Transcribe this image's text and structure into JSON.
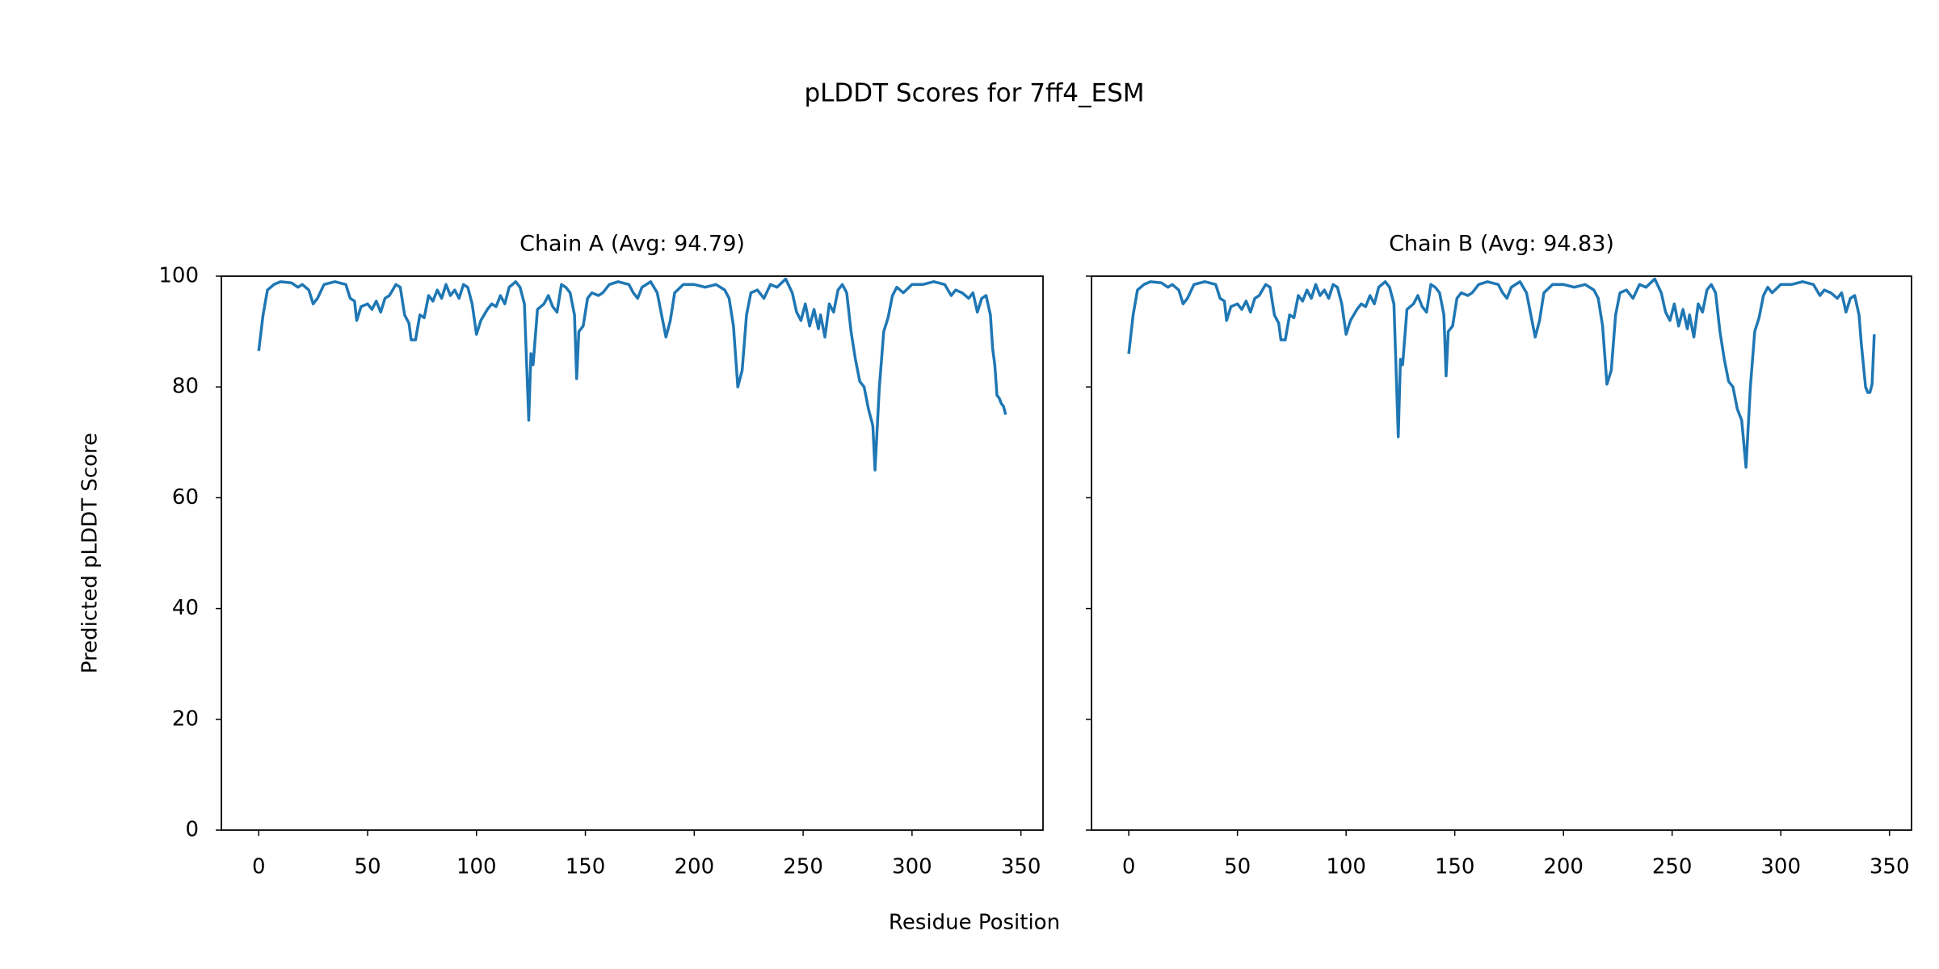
{
  "title": "pLDDT Scores for 7ff4_ESM",
  "xlabel": "Residue Position",
  "ylabel": "Predicted pLDDT Score",
  "chart_data": [
    {
      "type": "line",
      "title": "Chain A (Avg: 94.79)",
      "color": "#1f77b4",
      "xlim": [
        -17.15,
        360.15
      ],
      "ylim": [
        0,
        100
      ],
      "xticks": [
        0,
        50,
        100,
        150,
        200,
        250,
        300,
        350
      ],
      "yticks": [
        0,
        20,
        40,
        60,
        80,
        100
      ],
      "x": [
        0,
        2,
        4,
        7,
        10,
        15,
        18,
        20,
        23,
        25,
        27,
        30,
        35,
        40,
        42,
        44,
        45,
        47,
        50,
        52,
        54,
        56,
        58,
        60,
        63,
        65,
        67,
        69,
        70,
        72,
        74,
        76,
        78,
        80,
        82,
        84,
        86,
        88,
        90,
        92,
        94,
        96,
        98,
        100,
        102,
        105,
        107,
        109,
        111,
        113,
        115,
        118,
        120,
        122,
        124,
        125,
        126,
        128,
        131,
        133,
        135,
        137,
        139,
        141,
        143,
        145,
        146,
        147,
        149,
        151,
        153,
        156,
        158,
        161,
        165,
        170,
        172,
        174,
        176,
        180,
        183,
        185,
        187,
        189,
        191,
        195,
        200,
        205,
        210,
        214,
        216,
        218,
        220,
        222,
        224,
        226,
        229,
        232,
        235,
        238,
        242,
        245,
        247,
        249,
        251,
        253,
        255,
        257,
        258,
        260,
        262,
        264,
        266,
        268,
        270,
        272,
        274,
        276,
        278,
        280,
        282,
        283,
        285,
        287,
        289,
        291,
        293,
        296,
        300,
        305,
        310,
        315,
        318,
        320,
        323,
        326,
        328,
        330,
        332,
        334,
        336,
        337,
        338,
        339,
        340,
        341,
        342,
        343
      ],
      "values": [
        86.5,
        93,
        97.5,
        98.5,
        99,
        98.8,
        98,
        98.5,
        97.5,
        95,
        96,
        98.5,
        99,
        98.5,
        96,
        95.5,
        92,
        94.5,
        95,
        94,
        95.5,
        93.5,
        96,
        96.5,
        98.5,
        98,
        93,
        91.5,
        88.5,
        88.5,
        93,
        92.5,
        96.5,
        95.5,
        97.5,
        96,
        98.5,
        96.5,
        97.5,
        96,
        98.5,
        98,
        95,
        89.5,
        92,
        94,
        95,
        94.5,
        96.5,
        95,
        98,
        99,
        98,
        95,
        74,
        86,
        84,
        94,
        95,
        96.5,
        94.5,
        93.5,
        98.5,
        98,
        97,
        93,
        81.5,
        90,
        91,
        96,
        97,
        96.5,
        97,
        98.5,
        99,
        98.5,
        97,
        96,
        98,
        99,
        97,
        93,
        89,
        92,
        97,
        98.5,
        98.5,
        98,
        98.5,
        97.5,
        96,
        91,
        80,
        83,
        93,
        97,
        97.5,
        96,
        98.5,
        98,
        99.5,
        97,
        93.5,
        92,
        95,
        91,
        94,
        90.5,
        93,
        89,
        95,
        93.5,
        97.5,
        98.5,
        97,
        90,
        85,
        81,
        80,
        76,
        73,
        65,
        80,
        90,
        92.5,
        96.5,
        98,
        97,
        98.5,
        98.5,
        99,
        98.5,
        96.5,
        97.5,
        97,
        96,
        97,
        93.5,
        96,
        96.5,
        93,
        87,
        84,
        78.5,
        78,
        77,
        76.5,
        75
      ]
    },
    {
      "type": "line",
      "title": "Chain B (Avg: 94.83)",
      "color": "#1f77b4",
      "sharey": true,
      "xlim": [
        -17.15,
        360.15
      ],
      "ylim": [
        0,
        100
      ],
      "xticks": [
        0,
        50,
        100,
        150,
        200,
        250,
        300,
        350
      ],
      "yticks": [
        0,
        20,
        40,
        60,
        80,
        100
      ],
      "x": [
        0,
        2,
        4,
        7,
        10,
        15,
        18,
        20,
        23,
        25,
        27,
        30,
        35,
        40,
        42,
        44,
        45,
        47,
        50,
        52,
        54,
        56,
        58,
        60,
        63,
        65,
        67,
        69,
        70,
        72,
        74,
        76,
        78,
        80,
        82,
        84,
        86,
        88,
        90,
        92,
        94,
        96,
        98,
        100,
        102,
        105,
        107,
        109,
        111,
        113,
        115,
        118,
        120,
        122,
        124,
        125,
        126,
        128,
        131,
        133,
        135,
        137,
        139,
        141,
        143,
        145,
        146,
        147,
        149,
        151,
        153,
        156,
        158,
        161,
        165,
        170,
        172,
        174,
        176,
        180,
        183,
        185,
        187,
        189,
        191,
        195,
        200,
        205,
        210,
        214,
        216,
        218,
        220,
        222,
        224,
        226,
        229,
        232,
        235,
        238,
        242,
        245,
        247,
        249,
        251,
        253,
        255,
        257,
        258,
        260,
        262,
        264,
        266,
        268,
        270,
        272,
        274,
        276,
        278,
        280,
        282,
        284,
        286,
        288,
        290,
        292,
        294,
        296,
        300,
        305,
        310,
        315,
        318,
        320,
        323,
        326,
        328,
        330,
        332,
        334,
        336,
        337,
        338,
        339,
        340,
        341,
        342,
        343
      ],
      "values": [
        86,
        93,
        97.5,
        98.5,
        99,
        98.8,
        98,
        98.5,
        97.5,
        95,
        96,
        98.5,
        99,
        98.5,
        96,
        95.5,
        92,
        94.5,
        95,
        94,
        95.5,
        93.5,
        96,
        96.5,
        98.5,
        98,
        93,
        91.5,
        88.5,
        88.5,
        93,
        92.5,
        96.5,
        95.5,
        97.5,
        96,
        98.5,
        96.5,
        97.5,
        96,
        98.5,
        98,
        95,
        89.5,
        92,
        94,
        95,
        94.5,
        96.5,
        95,
        98,
        99,
        98,
        95,
        71,
        85,
        84,
        94,
        95,
        96.5,
        94.5,
        93.5,
        98.5,
        98,
        97,
        93,
        82,
        90,
        91,
        96,
        97,
        96.5,
        97,
        98.5,
        99,
        98.5,
        97,
        96,
        98,
        99,
        97,
        93,
        89,
        92,
        97,
        98.5,
        98.5,
        98,
        98.5,
        97.5,
        96,
        91,
        80.5,
        83,
        93,
        97,
        97.5,
        96,
        98.5,
        98,
        99.5,
        97,
        93.5,
        92,
        95,
        91,
        94,
        90.5,
        93,
        89,
        95,
        93.5,
        97.5,
        98.5,
        97,
        90,
        85,
        81,
        80,
        76,
        74,
        65.5,
        80,
        90,
        92.5,
        96.5,
        98,
        97,
        98.5,
        98.5,
        99,
        98.5,
        96.5,
        97.5,
        97,
        96,
        97,
        93.5,
        96,
        96.5,
        93,
        88,
        84,
        80,
        79,
        79,
        80.5,
        89.5
      ]
    }
  ]
}
